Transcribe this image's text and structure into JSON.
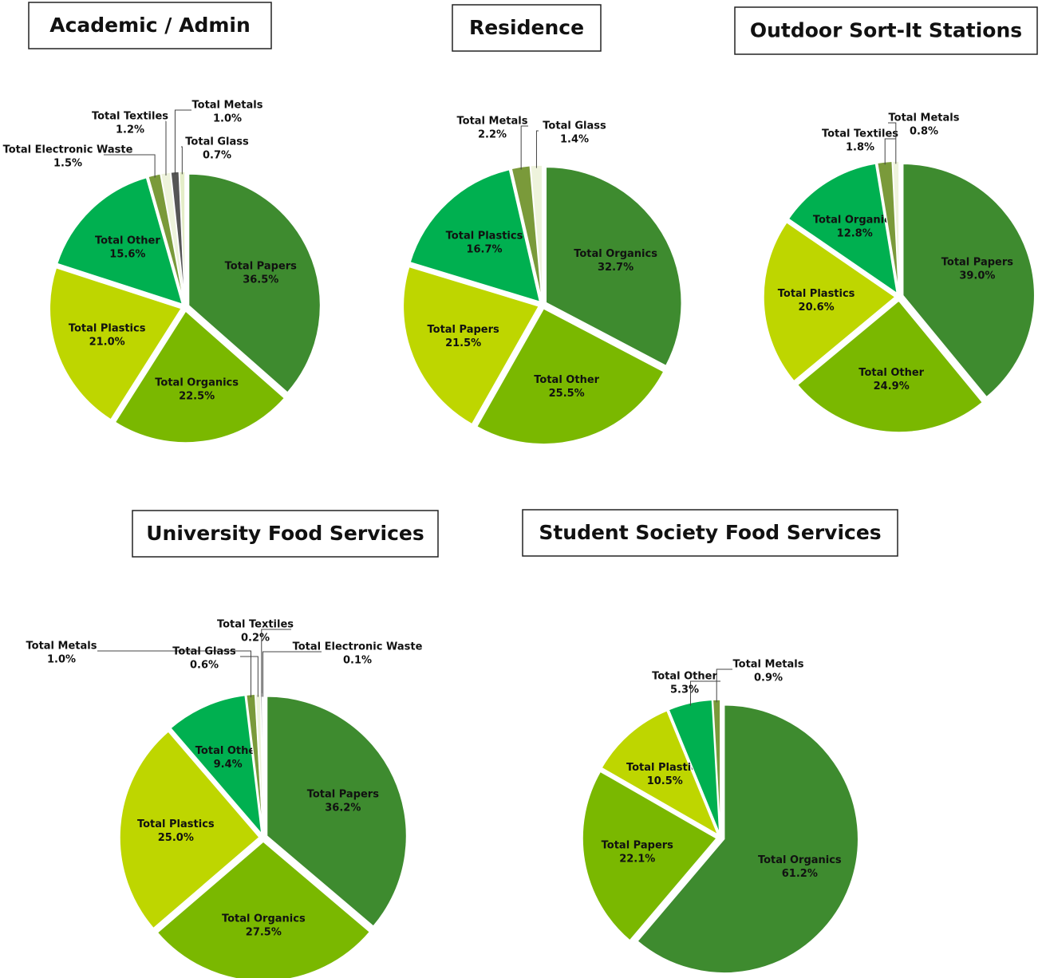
{
  "chart_data": [
    {
      "type": "pie",
      "title": "Academic / Admin",
      "categories": [
        "Total Papers",
        "Total Organics",
        "Total Plastics",
        "Total Other",
        "Total Electronic Waste",
        "Total Textiles",
        "Total Metals",
        "Total Glass"
      ],
      "values": [
        36.5,
        22.5,
        21.0,
        15.6,
        1.5,
        1.2,
        1.0,
        0.7
      ],
      "value_labels": [
        "36.5%",
        "22.5%",
        "21.0%",
        "15.6%",
        "1.5%",
        "1.2%",
        "1.0%",
        "0.7%"
      ],
      "colors": [
        "#3e8b2f",
        "#7ab800",
        "#bed600",
        "#00b050",
        "#7a9a3a",
        "#eef3dc",
        "#555555",
        "#e4edc8"
      ]
    },
    {
      "type": "pie",
      "title": "Residence",
      "categories": [
        "Total Organics",
        "Total Other",
        "Total Papers",
        "Total Plastics",
        "Total Metals",
        "Total Glass"
      ],
      "values": [
        32.7,
        25.5,
        21.5,
        16.7,
        2.2,
        1.4
      ],
      "value_labels": [
        "32.7%",
        "25.5%",
        "21.5%",
        "16.7%",
        "2.2%",
        "1.4%"
      ],
      "colors": [
        "#3e8b2f",
        "#7ab800",
        "#bed600",
        "#00b050",
        "#7a9a3a",
        "#eef3dc"
      ]
    },
    {
      "type": "pie",
      "title": "Outdoor Sort-It Stations",
      "categories": [
        "Total Papers",
        "Total Other",
        "Total Plastics",
        "Total Organics",
        "Total Textiles",
        "Total Metals"
      ],
      "values": [
        39.0,
        24.9,
        20.6,
        12.8,
        1.8,
        0.8
      ],
      "value_labels": [
        "39.0%",
        "24.9%",
        "20.6%",
        "12.8%",
        "1.8%",
        "0.8%"
      ],
      "colors": [
        "#3e8b2f",
        "#7ab800",
        "#bed600",
        "#00b050",
        "#7a9a3a",
        "#eef3dc"
      ]
    },
    {
      "type": "pie",
      "title": "University Food Services",
      "categories": [
        "Total Papers",
        "Total Organics",
        "Total Plastics",
        "Total Other",
        "Total Metals",
        "Total Glass",
        "Total Textiles",
        "Total Electronic Waste"
      ],
      "values": [
        36.2,
        27.5,
        25.0,
        9.4,
        1.0,
        0.6,
        0.2,
        0.1
      ],
      "value_labels": [
        "36.2%",
        "27.5%",
        "25.0%",
        "9.4%",
        "1.0%",
        "0.6%",
        "0.2%",
        "0.1%"
      ],
      "colors": [
        "#3e8b2f",
        "#7ab800",
        "#bed600",
        "#00b050",
        "#7a9a3a",
        "#eef3dc",
        "#888888",
        "#e4edc8"
      ]
    },
    {
      "type": "pie",
      "title": "Student Society Food Services",
      "categories": [
        "Total Organics",
        "Total Papers",
        "Total Plastics",
        "Total Other",
        "Total Metals"
      ],
      "values": [
        61.2,
        22.1,
        10.5,
        5.3,
        0.9
      ],
      "value_labels": [
        "61.2%",
        "22.1%",
        "10.5%",
        "5.3%",
        "0.9%"
      ],
      "colors": [
        "#3e8b2f",
        "#7ab800",
        "#bed600",
        "#00b050",
        "#7a9a3a"
      ]
    }
  ]
}
